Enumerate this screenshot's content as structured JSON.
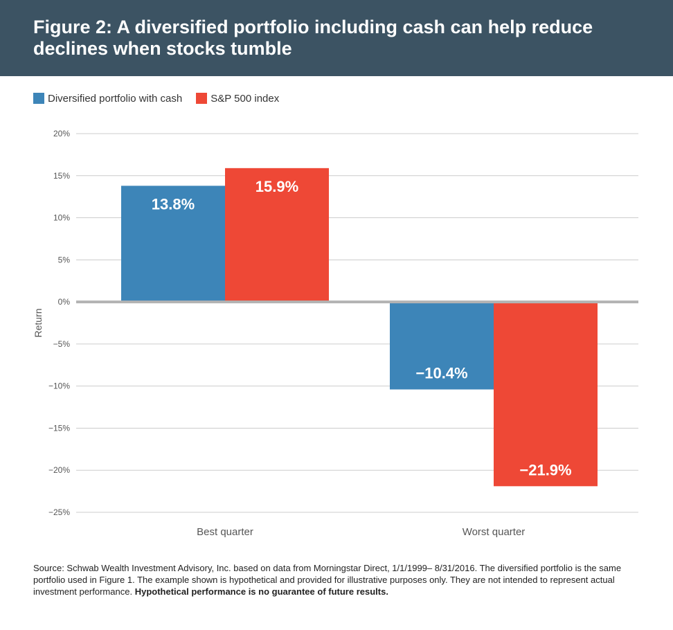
{
  "title": "Figure 2: A diversified portfolio including cash can help reduce declines when stocks tumble",
  "footnote": {
    "text": "Source: Schwab Wealth Investment Advisory, Inc. based on data from Morningstar Direct, 1/1/1999– 8/31/2016. The diversified portfolio is the same portfolio used in Figure 1. The example shown is hypothetical and provided for illustrative purposes only. They are not intended to represent actual investment performance.",
    "bold": "Hypothetical performance is no guarantee of future results."
  },
  "colors": {
    "header": "#3c5363",
    "diversified": "#3d85b8",
    "sp500": "#ee4836",
    "grid": "#cccccc",
    "zero_line": "#b3b3b3"
  },
  "chart_data": {
    "type": "bar",
    "categories": [
      "Best quarter",
      "Worst quarter"
    ],
    "series": [
      {
        "name": "Diversified portfolio with cash",
        "values": [
          13.8,
          -10.4
        ],
        "labels": [
          "13.8%",
          "−10.4%"
        ]
      },
      {
        "name": "S&P 500 index",
        "values": [
          15.9,
          -21.9
        ],
        "labels": [
          "15.9%",
          "−21.9%"
        ]
      }
    ],
    "ylabel": "Return",
    "xlabel": "",
    "ylim": [
      -25,
      20
    ],
    "yticks": [
      20,
      15,
      10,
      5,
      0,
      -5,
      -10,
      -15,
      -20,
      -25
    ],
    "ytick_labels": [
      "20%",
      "15%",
      "10%",
      "5%",
      "0%",
      "−5%",
      "−10%",
      "−15%",
      "−20%",
      "−25%"
    ],
    "grid": true,
    "legend": "top-left"
  }
}
